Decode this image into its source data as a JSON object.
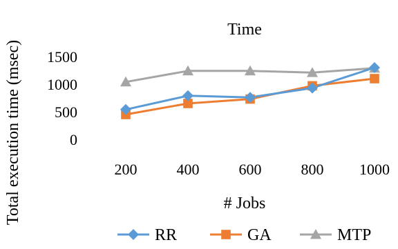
{
  "chart_data": {
    "type": "line",
    "title": "Time",
    "xlabel": "# Jobs",
    "ylabel": "Total execution time (msec)",
    "categories": [
      "200",
      "400",
      "600",
      "800",
      "1000"
    ],
    "ylim": [
      0,
      1500
    ],
    "yticks": [
      "0",
      "500",
      "1000",
      "1500"
    ],
    "grid": false,
    "legend_position": "bottom",
    "series": [
      {
        "name": "RR",
        "values": [
          540,
          790,
          760,
          930,
          1300
        ],
        "color": "#5B9BD5",
        "marker": "diamond"
      },
      {
        "name": "GA",
        "values": [
          450,
          650,
          730,
          970,
          1100
        ],
        "color": "#ED7D31",
        "marker": "square"
      },
      {
        "name": "MTP",
        "values": [
          1040,
          1240,
          1240,
          1210,
          1290
        ],
        "color": "#A5A5A5",
        "marker": "triangle"
      }
    ]
  }
}
